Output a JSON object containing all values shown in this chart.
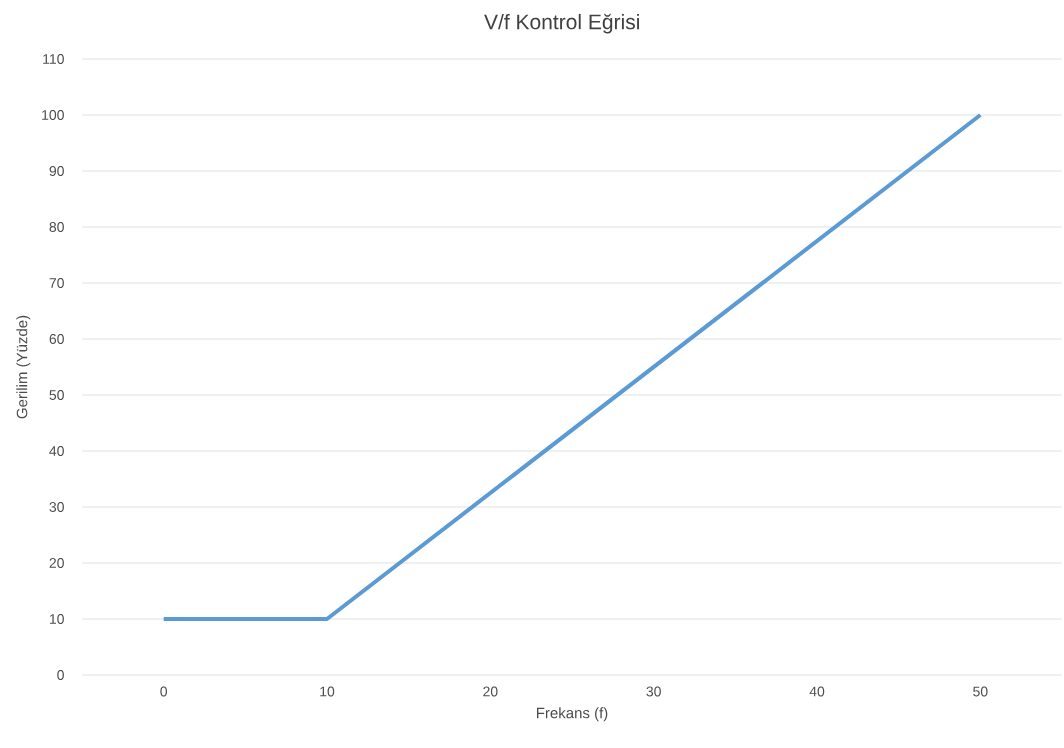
{
  "chart_data": {
    "type": "line",
    "title": "V/f Kontrol Eğrisi",
    "xlabel": "Frekans (f)",
    "ylabel": "Gerilim (Yüzde)",
    "x": [
      0,
      10,
      50
    ],
    "series": [
      {
        "color": "#5b9bd5",
        "values": [
          10,
          10,
          100
        ]
      }
    ],
    "xlim": [
      -5,
      55
    ],
    "xticks": [
      0,
      10,
      20,
      30,
      40,
      50
    ],
    "ylim": [
      0,
      110
    ],
    "yticks": [
      0,
      10,
      20,
      30,
      40,
      50,
      60,
      70,
      80,
      90,
      100,
      110
    ],
    "grid": "y",
    "marker": "none",
    "line_style": "solid"
  }
}
